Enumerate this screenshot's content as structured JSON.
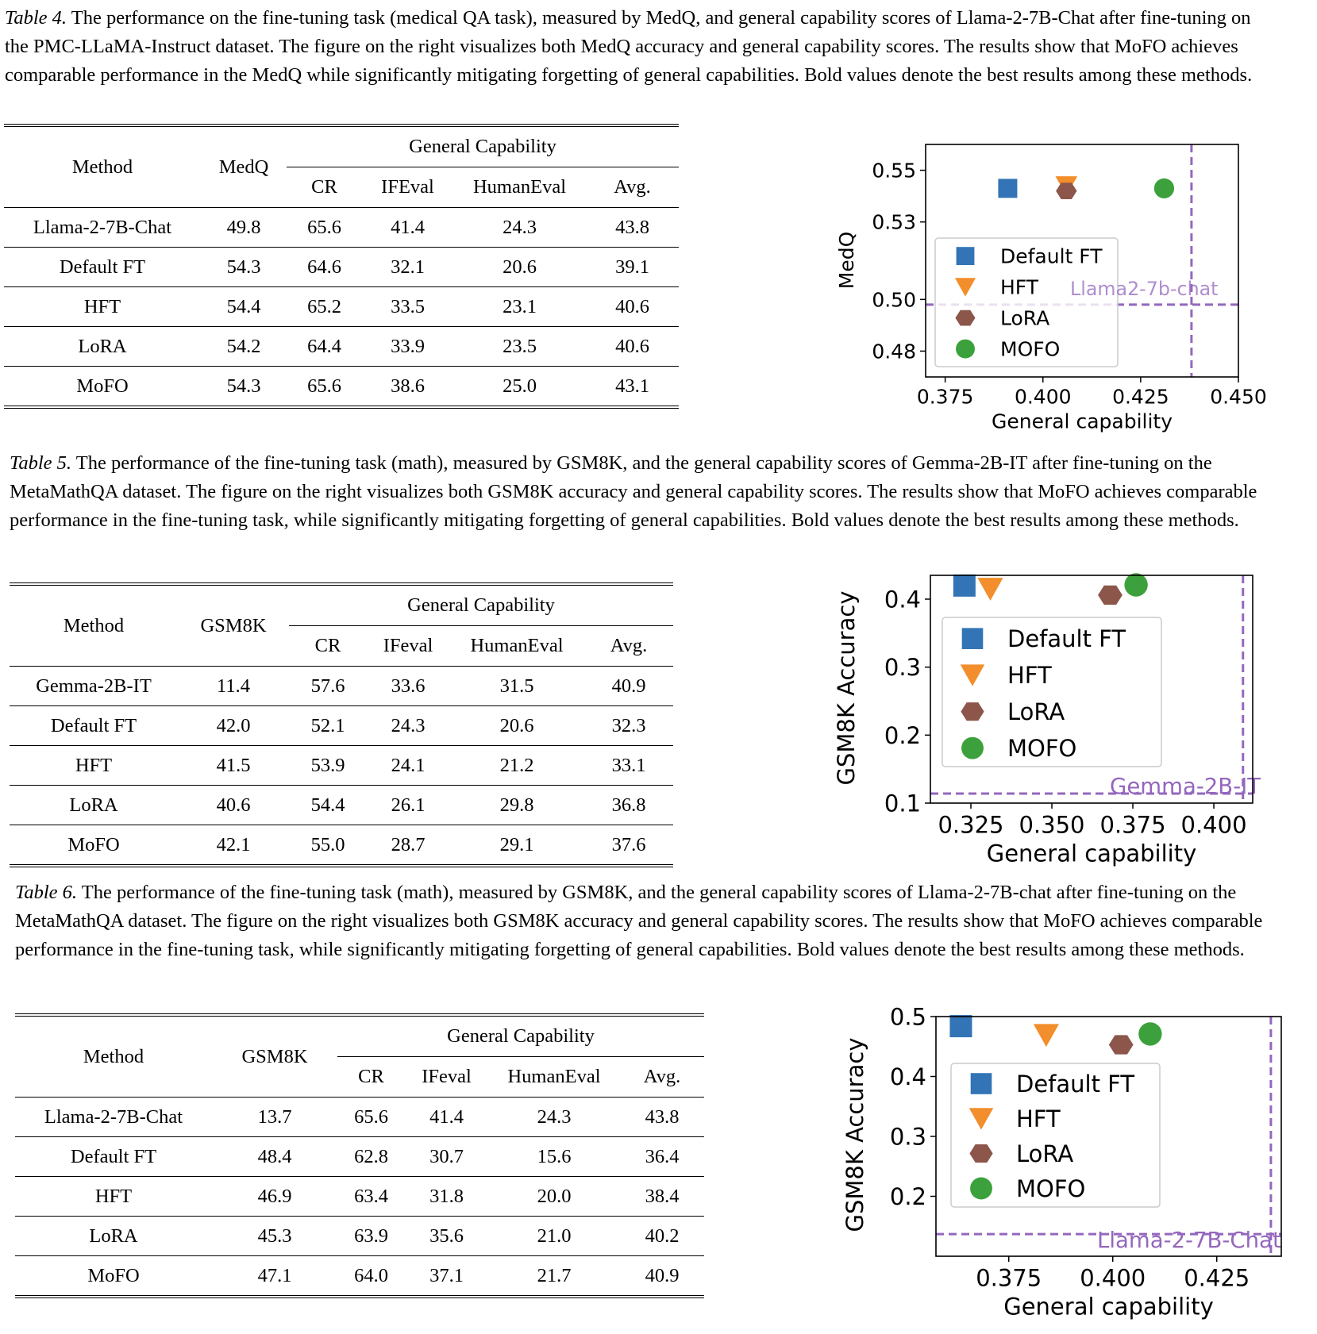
{
  "tables": [
    {
      "label": "Table 4.",
      "caption": " The performance on the fine-tuning task (medical QA task), measured by MedQ, and general capability scores of Llama-2-7B-Chat after fine-tuning on the PMC-LLaMA-Instruct dataset. The figure on the right visualizes both MedQ accuracy and general capability scores. The results show that MoFO achieves comparable performance in the MedQ while significantly mitigating forgetting of general capabilities. Bold values denote the best results among these methods.",
      "header": {
        "method": "Method",
        "task": "MedQ",
        "group": "General Capability",
        "sub": [
          "CR",
          "IFEval",
          "HumanEval",
          "Avg."
        ]
      },
      "rows": [
        {
          "method": "Llama-2-7B-Chat",
          "values": [
            "49.8",
            "65.6",
            "41.4",
            "24.3",
            "43.8"
          ],
          "bold": []
        },
        {
          "method": "Default FT",
          "values": [
            "54.3",
            "64.6",
            "32.1",
            "20.6",
            "39.1"
          ],
          "bold": []
        },
        {
          "method": "HFT",
          "values": [
            "54.4",
            "65.2",
            "33.5",
            "23.1",
            "40.6"
          ],
          "bold": [
            0
          ]
        },
        {
          "method": "LoRA",
          "values": [
            "54.2",
            "64.4",
            "33.9",
            "23.5",
            "40.6"
          ],
          "bold": []
        },
        {
          "method": "MoFO",
          "values": [
            "54.3",
            "65.6",
            "38.6",
            "25.0",
            "43.1"
          ],
          "bold": [
            1,
            2,
            3,
            4
          ]
        }
      ]
    },
    {
      "label": "Table 5.",
      "caption": " The performance of the fine-tuning task (math), measured by GSM8K, and the general capability scores of Gemma-2B-IT after fine-tuning on the MetaMathQA dataset. The figure on the right visualizes both GSM8K accuracy and general capability scores. The results show that MoFO achieves comparable performance in the fine-tuning task, while significantly mitigating forgetting of general capabilities. Bold values denote the best results among these methods.",
      "header": {
        "method": "Method",
        "task": "GSM8K",
        "group": "General Capability",
        "sub": [
          "CR",
          "IFeval",
          "HumanEval",
          "Avg."
        ]
      },
      "rows": [
        {
          "method": "Gemma-2B-IT",
          "values": [
            "11.4",
            "57.6",
            "33.6",
            "31.5",
            "40.9"
          ],
          "bold": []
        },
        {
          "method": "Default FT",
          "values": [
            "42.0",
            "52.1",
            "24.3",
            "20.6",
            "32.3"
          ],
          "bold": []
        },
        {
          "method": "HFT",
          "values": [
            "41.5",
            "53.9",
            "24.1",
            "21.2",
            "33.1"
          ],
          "bold": []
        },
        {
          "method": "LoRA",
          "values": [
            "40.6",
            "54.4",
            "26.1",
            "29.8",
            "36.8"
          ],
          "bold": [
            3
          ]
        },
        {
          "method": "MoFO",
          "values": [
            "42.1",
            "55.0",
            "28.7",
            "29.1",
            "37.6"
          ],
          "bold": [
            0,
            1,
            2,
            4
          ]
        }
      ]
    },
    {
      "label": "Table 6.",
      "caption": " The performance of the fine-tuning task (math), measured by GSM8K, and the general capability scores of Llama-2-7B-chat after fine-tuning on the MetaMathQA dataset. The figure on the right visualizes both GSM8K accuracy and general capability scores. The results show that MoFO achieves comparable performance in the fine-tuning task, while significantly mitigating forgetting of general capabilities. Bold values denote the best results among these methods.",
      "header": {
        "method": "Method",
        "task": "GSM8K",
        "group": "General Capability",
        "sub": [
          "CR",
          "IFeval",
          "HumanEval",
          "Avg."
        ]
      },
      "rows": [
        {
          "method": "Llama-2-7B-Chat",
          "values": [
            "13.7",
            "65.6",
            "41.4",
            "24.3",
            "43.8"
          ],
          "bold": []
        },
        {
          "method": "Default FT",
          "values": [
            "48.4",
            "62.8",
            "30.7",
            "15.6",
            "36.4"
          ],
          "bold": [
            0
          ]
        },
        {
          "method": "HFT",
          "values": [
            "46.9",
            "63.4",
            "31.8",
            "20.0",
            "38.4"
          ],
          "bold": []
        },
        {
          "method": "LoRA",
          "values": [
            "45.3",
            "63.9",
            "35.6",
            "21.0",
            "40.2"
          ],
          "bold": []
        },
        {
          "method": "MoFO",
          "values": [
            "47.1",
            "64.0",
            "37.1",
            "21.7",
            "40.9"
          ],
          "bold": [
            1,
            2,
            3,
            4
          ]
        }
      ]
    }
  ],
  "chart_data": [
    {
      "type": "scatter",
      "xlabel": "General capability",
      "ylabel": "MedQ",
      "xlim": [
        0.37,
        0.45
      ],
      "ylim": [
        0.47,
        0.56
      ],
      "xticks": [
        "0.375",
        "0.400",
        "0.425",
        "0.450"
      ],
      "yticks": [
        "0.48",
        "0.50",
        "0.53",
        "0.55"
      ],
      "series": [
        {
          "name": "Default FT",
          "marker": "square",
          "color": "#3274b5",
          "x": 0.391,
          "y": 0.543
        },
        {
          "name": "HFT",
          "marker": "triangle-down",
          "color": "#f28e2b",
          "x": 0.406,
          "y": 0.544
        },
        {
          "name": "LoRA",
          "marker": "hexagon",
          "color": "#8c564b",
          "x": 0.406,
          "y": 0.542
        },
        {
          "name": "MOFO",
          "marker": "circle",
          "color": "#3ca13c",
          "x": 0.431,
          "y": 0.543
        }
      ],
      "reference": {
        "label": "Llama2-7b-chat",
        "x": 0.438,
        "y": 0.498,
        "color": "#9467bd"
      },
      "legend": "center-left"
    },
    {
      "type": "scatter",
      "xlabel": "General capability",
      "ylabel": "GSM8K Accuracy",
      "xlim": [
        0.3125,
        0.412
      ],
      "ylim": [
        0.1,
        0.435
      ],
      "xticks": [
        "0.325",
        "0.350",
        "0.375",
        "0.400"
      ],
      "yticks": [
        "0.1",
        "0.2",
        "0.3",
        "0.4"
      ],
      "series": [
        {
          "name": "Default FT",
          "marker": "square",
          "color": "#3274b5",
          "x": 0.323,
          "y": 0.42
        },
        {
          "name": "HFT",
          "marker": "triangle-down",
          "color": "#f28e2b",
          "x": 0.331,
          "y": 0.415
        },
        {
          "name": "LoRA",
          "marker": "hexagon",
          "color": "#8c564b",
          "x": 0.368,
          "y": 0.406
        },
        {
          "name": "MOFO",
          "marker": "circle",
          "color": "#3ca13c",
          "x": 0.376,
          "y": 0.421
        }
      ],
      "reference": {
        "label": "Gemma-2B-IT",
        "x": 0.409,
        "y": 0.114,
        "color": "#9467bd"
      },
      "legend": "center"
    },
    {
      "type": "scatter",
      "xlabel": "General capability",
      "ylabel": "GSM8K Accuracy",
      "xlim": [
        0.3575,
        0.4405
      ],
      "ylim": [
        0.1,
        0.5
      ],
      "xticks": [
        "0.375",
        "0.400",
        "0.425"
      ],
      "yticks": [
        "0.2",
        "0.3",
        "0.4",
        "0.5"
      ],
      "series": [
        {
          "name": "Default FT",
          "marker": "square",
          "color": "#3274b5",
          "x": 0.3635,
          "y": 0.484
        },
        {
          "name": "HFT",
          "marker": "triangle-down",
          "color": "#f28e2b",
          "x": 0.384,
          "y": 0.469
        },
        {
          "name": "LoRA",
          "marker": "hexagon",
          "color": "#8c564b",
          "x": 0.402,
          "y": 0.453
        },
        {
          "name": "MOFO",
          "marker": "circle",
          "color": "#3ca13c",
          "x": 0.409,
          "y": 0.471
        }
      ],
      "reference": {
        "label": "Llama-2-7B-Chat",
        "x": 0.438,
        "y": 0.137,
        "color": "#9467bd"
      },
      "legend": "center-left"
    }
  ]
}
